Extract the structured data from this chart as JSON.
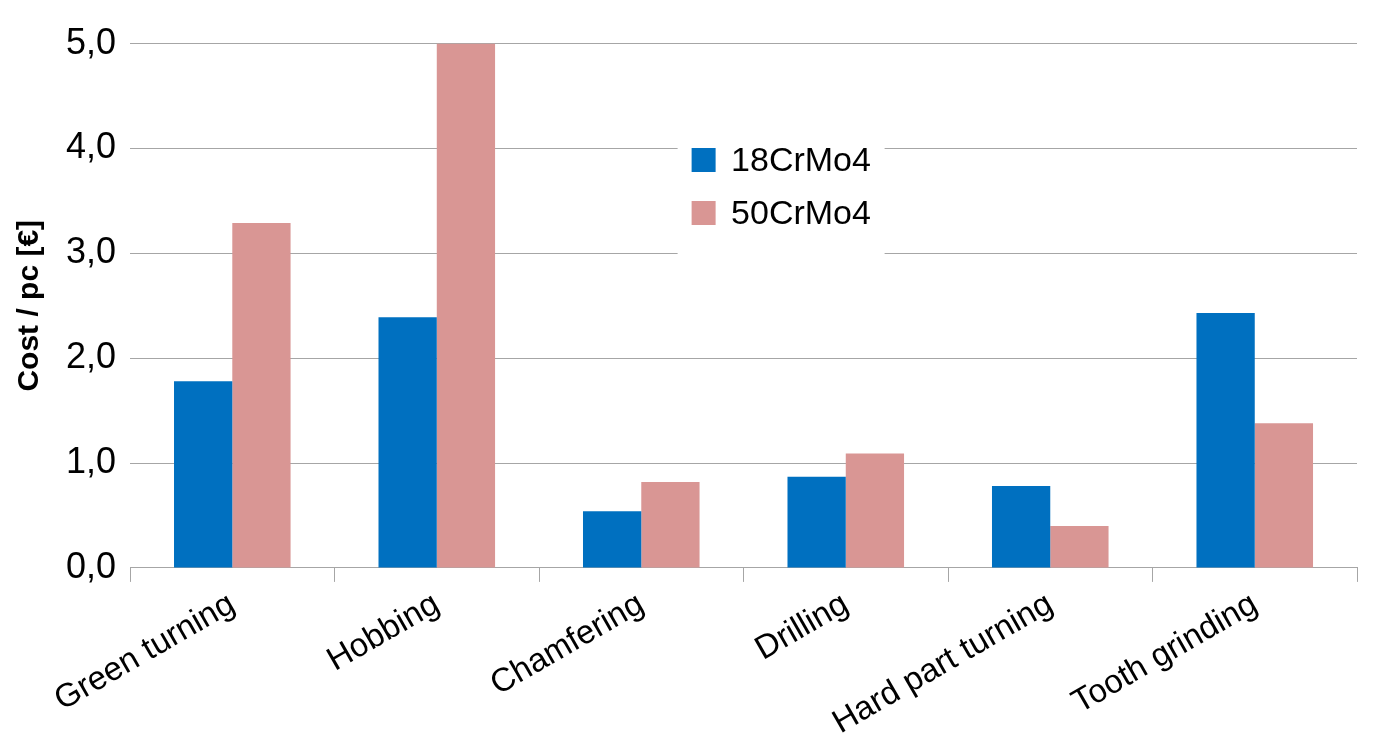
{
  "chart_data": {
    "type": "bar",
    "ylabel": "Cost / pc [€]",
    "categories": [
      "Green turning",
      "Hobbing",
      "Chamfering",
      "Drilling",
      "Hard part turning",
      "Tooth grinding"
    ],
    "series": [
      {
        "name": "18CrMo4",
        "color": "#0070c0",
        "values": [
          1.78,
          2.39,
          0.54,
          0.87,
          0.78,
          2.43
        ]
      },
      {
        "name": "50CrMo4",
        "color": "#d99694",
        "values": [
          3.29,
          5.0,
          0.82,
          1.09,
          0.4,
          1.38
        ]
      }
    ],
    "ylim": [
      0,
      5
    ],
    "yticks": [
      {
        "value": 0,
        "label": "0,0"
      },
      {
        "value": 1,
        "label": "1,0"
      },
      {
        "value": 2,
        "label": "2,0"
      },
      {
        "value": 3,
        "label": "3,0"
      },
      {
        "value": 4,
        "label": "4,0"
      },
      {
        "value": 5,
        "label": "5,0"
      }
    ],
    "grid": "y",
    "legend": "top"
  }
}
